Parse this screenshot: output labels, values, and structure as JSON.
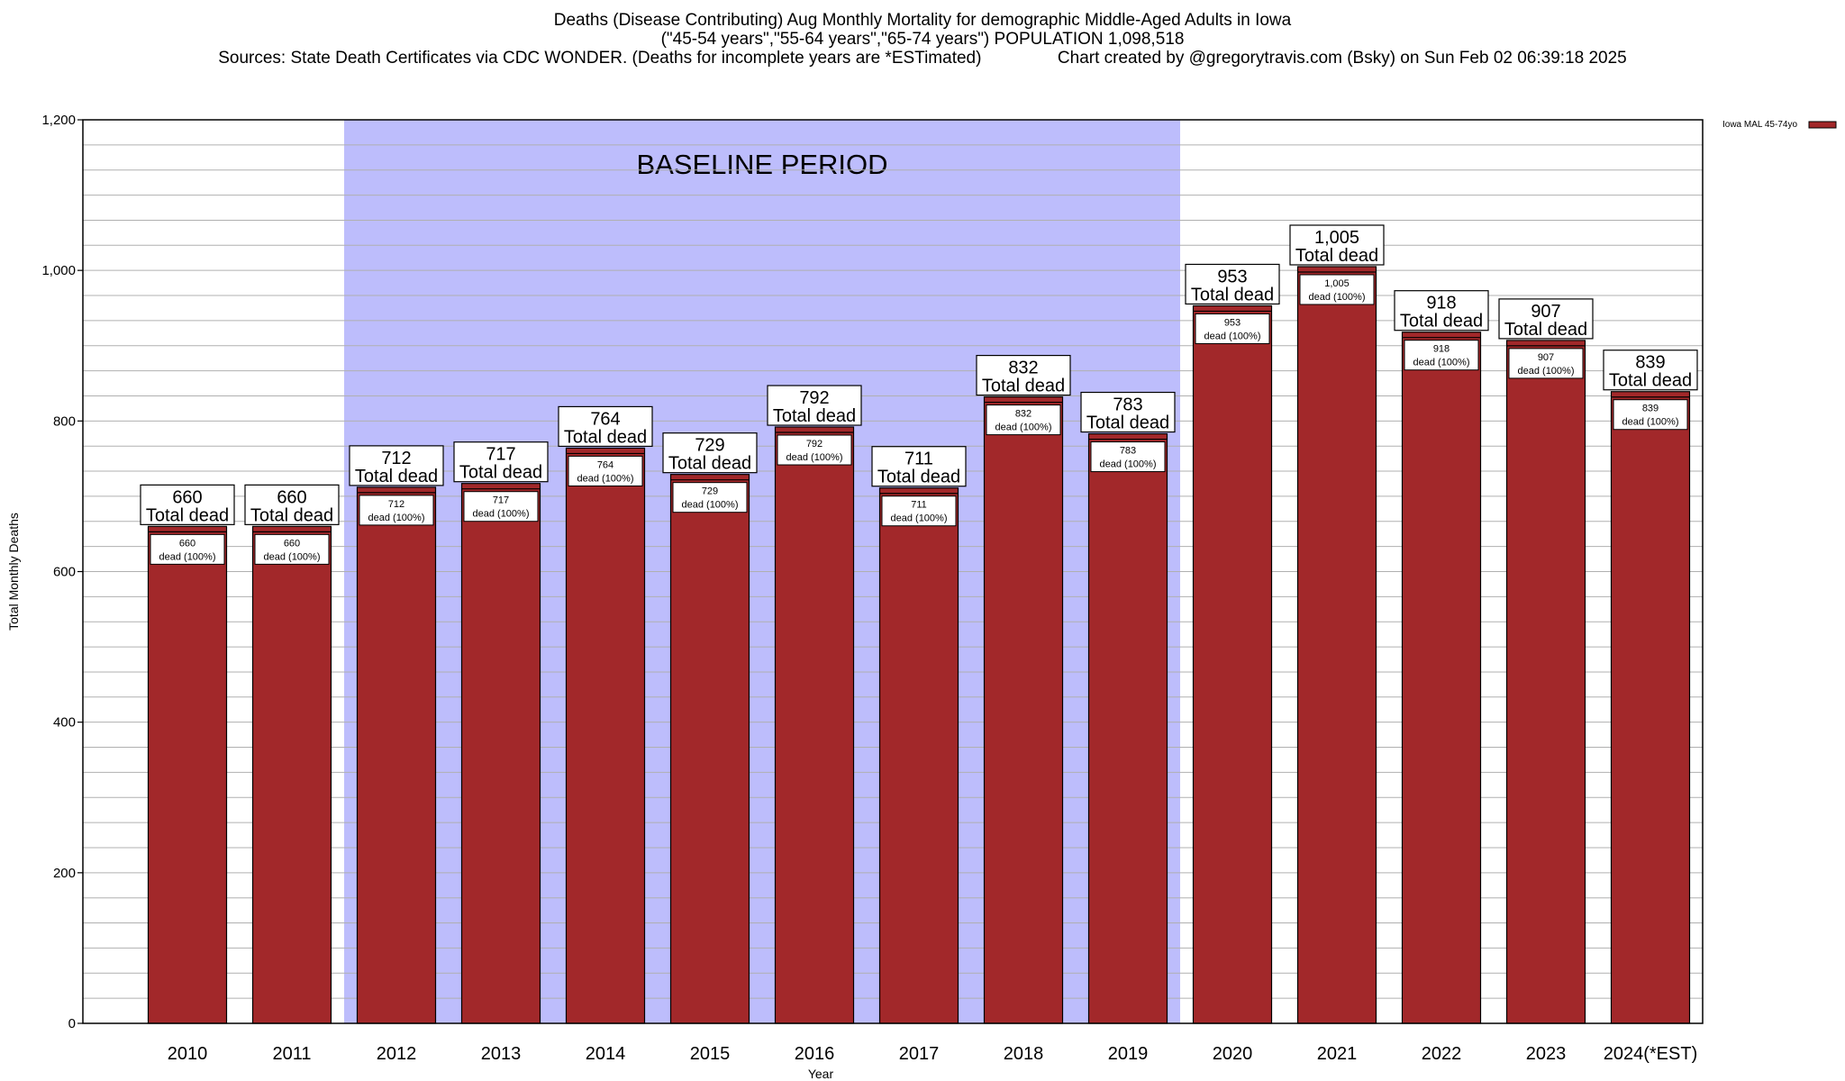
{
  "chart_data": {
    "type": "bar",
    "title": "Deaths (Disease Contributing) Aug Monthly Mortality for demographic Middle-Aged Adults in Iowa",
    "subtitle": "(\"45-54 years\",\"55-64 years\",\"65-74 years\") POPULATION 1,098,518",
    "sources": "Sources: State Death Certificates via CDC WONDER. (Deaths for incomplete years are *ESTimated)",
    "credit": "Chart created by @gregorytravis.com (Bsky) on Sun Feb 02 06:39:18 2025",
    "xlabel": "Year",
    "ylabel": "Total Monthly Deaths",
    "ylim": [
      0,
      1200
    ],
    "yticks": [
      0,
      200,
      400,
      600,
      800,
      1000,
      1200
    ],
    "ytick_labels": [
      "0",
      "200",
      "400",
      "600",
      "800",
      "1,000",
      "1,200"
    ],
    "grid": true,
    "categories": [
      "2010",
      "2011",
      "2012",
      "2013",
      "2014",
      "2015",
      "2016",
      "2017",
      "2018",
      "2019",
      "2020",
      "2021",
      "2022",
      "2023",
      "2024(*EST)"
    ],
    "series": [
      {
        "name": "Iowa MAL 45-74yo",
        "color": "#a2282a",
        "values": [
          660,
          660,
          712,
          717,
          764,
          729,
          792,
          711,
          832,
          783,
          953,
          1005,
          918,
          907,
          839
        ],
        "value_labels": [
          "660",
          "660",
          "712",
          "717",
          "764",
          "729",
          "792",
          "711",
          "832",
          "783",
          "953",
          "1,005",
          "918",
          "907",
          "839"
        ]
      }
    ],
    "total_label_suffix": "Total dead",
    "inner_label_suffix": "dead (100%)",
    "baseline": {
      "label": "BASELINE PERIOD",
      "start": "2012",
      "end": "2019",
      "color": "#bdbdfc"
    },
    "legend": {
      "position": "top-right",
      "label": "Iowa MAL 45-74yo"
    }
  }
}
